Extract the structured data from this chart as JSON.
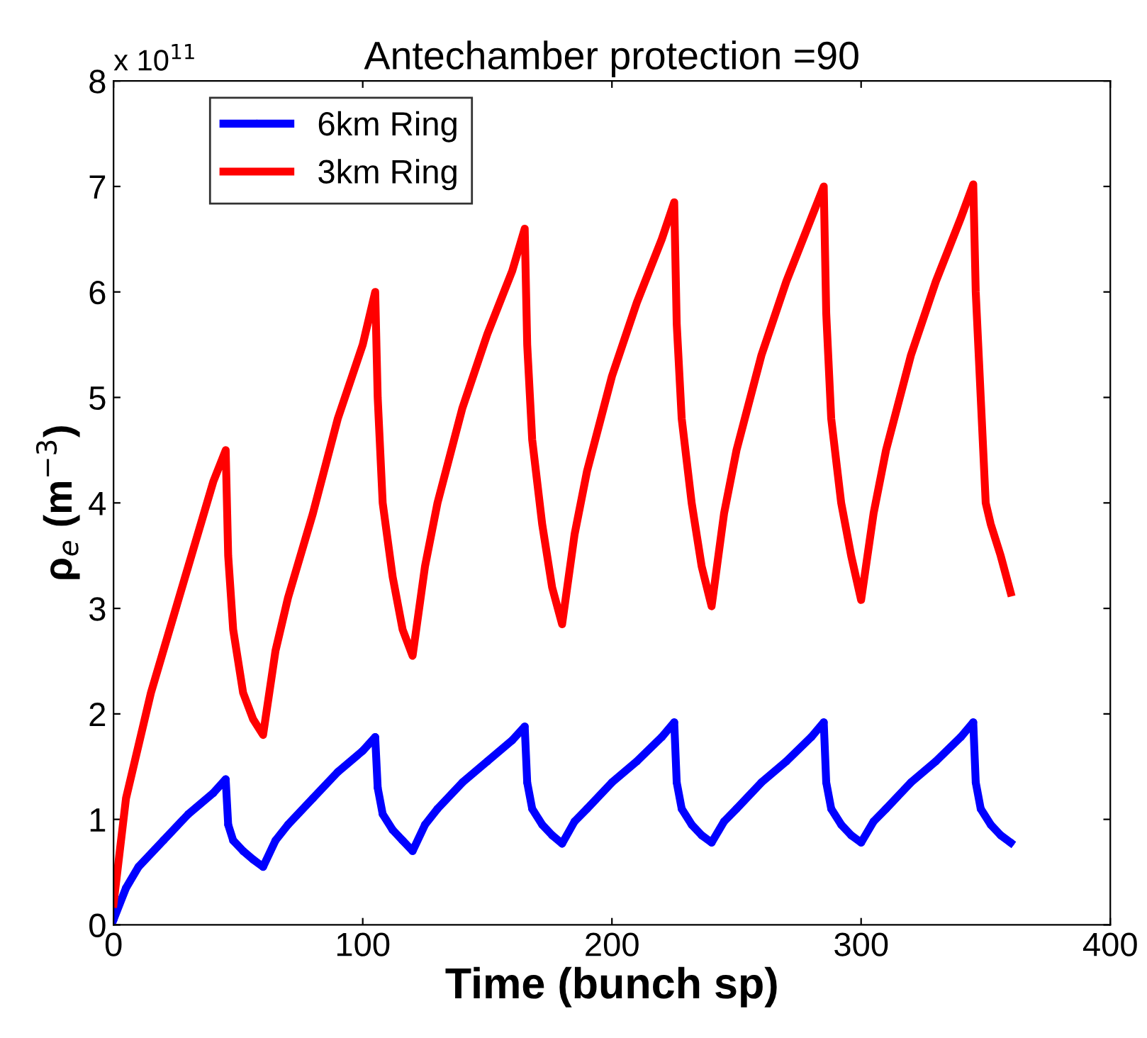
{
  "chart_data": {
    "type": "line",
    "title": "Antechamber protection =90",
    "xlabel": "Time (bunch sp)",
    "ylabel": "ρ$_{e}$ (m$^{−3}$)",
    "annotations": [
      "x 10$^{11}$"
    ],
    "xlim": [
      0,
      400
    ],
    "xticks": [
      0,
      100,
      200,
      300,
      400
    ],
    "ylim": [
      0,
      8
    ],
    "yticks": [
      0,
      1,
      2,
      3,
      4,
      5,
      6,
      7,
      8
    ],
    "grid": false,
    "legend": "top left",
    "line_style": "solid",
    "series": [
      {
        "name": "6km Ring",
        "color": "#0000ff",
        "marker": "circle",
        "x": [
          0,
          5,
          10,
          20,
          30,
          40,
          45,
          46,
          48,
          52,
          56,
          60,
          65,
          70,
          80,
          90,
          100,
          105,
          106,
          108,
          112,
          116,
          120,
          125,
          130,
          140,
          150,
          160,
          165,
          166,
          168,
          172,
          176,
          180,
          185,
          190,
          200,
          210,
          220,
          225,
          226,
          228,
          232,
          236,
          240,
          245,
          250,
          260,
          270,
          280,
          285,
          286,
          288,
          292,
          296,
          300,
          305,
          310,
          320,
          330,
          340,
          345,
          346,
          348,
          352,
          356,
          360
        ],
        "values": [
          0.05,
          0.35,
          0.55,
          0.8,
          1.05,
          1.25,
          1.38,
          0.95,
          0.8,
          0.7,
          0.62,
          0.55,
          0.8,
          0.95,
          1.2,
          1.45,
          1.65,
          1.78,
          1.3,
          1.05,
          0.9,
          0.8,
          0.7,
          0.95,
          1.1,
          1.35,
          1.55,
          1.75,
          1.88,
          1.35,
          1.1,
          0.95,
          0.85,
          0.77,
          0.98,
          1.1,
          1.35,
          1.55,
          1.78,
          1.92,
          1.35,
          1.1,
          0.95,
          0.85,
          0.78,
          0.98,
          1.1,
          1.35,
          1.55,
          1.78,
          1.92,
          1.35,
          1.1,
          0.95,
          0.85,
          0.78,
          0.98,
          1.1,
          1.35,
          1.55,
          1.78,
          1.92,
          1.35,
          1.1,
          0.95,
          0.85,
          0.78
        ]
      },
      {
        "name": "3km Ring",
        "color": "#ff0000",
        "marker": "none",
        "x": [
          0,
          2,
          5,
          10,
          15,
          20,
          25,
          30,
          35,
          40,
          45,
          46,
          48,
          52,
          56,
          60,
          65,
          70,
          80,
          90,
          100,
          105,
          106,
          108,
          112,
          116,
          120,
          125,
          130,
          140,
          150,
          160,
          165,
          166,
          168,
          172,
          176,
          180,
          185,
          190,
          200,
          210,
          220,
          225,
          226,
          228,
          232,
          236,
          240,
          245,
          250,
          260,
          270,
          280,
          285,
          286,
          288,
          292,
          296,
          300,
          305,
          310,
          320,
          330,
          340,
          345,
          346,
          348,
          350,
          352,
          356,
          360
        ],
        "values": [
          0.2,
          0.6,
          1.2,
          1.7,
          2.2,
          2.6,
          3.0,
          3.4,
          3.8,
          4.2,
          4.5,
          3.5,
          2.8,
          2.2,
          1.95,
          1.8,
          2.6,
          3.1,
          3.9,
          4.8,
          5.5,
          6.0,
          5.0,
          4.0,
          3.3,
          2.8,
          2.55,
          3.4,
          4.0,
          4.9,
          5.6,
          6.2,
          6.6,
          5.5,
          4.6,
          3.8,
          3.2,
          2.85,
          3.7,
          4.3,
          5.2,
          5.9,
          6.5,
          6.85,
          5.7,
          4.8,
          4.0,
          3.4,
          3.02,
          3.9,
          4.5,
          5.4,
          6.1,
          6.7,
          7.0,
          5.8,
          4.8,
          4.0,
          3.5,
          3.08,
          3.9,
          4.5,
          5.4,
          6.1,
          6.7,
          7.02,
          6.0,
          5.0,
          4.0,
          3.8,
          3.5,
          3.15
        ]
      }
    ]
  }
}
